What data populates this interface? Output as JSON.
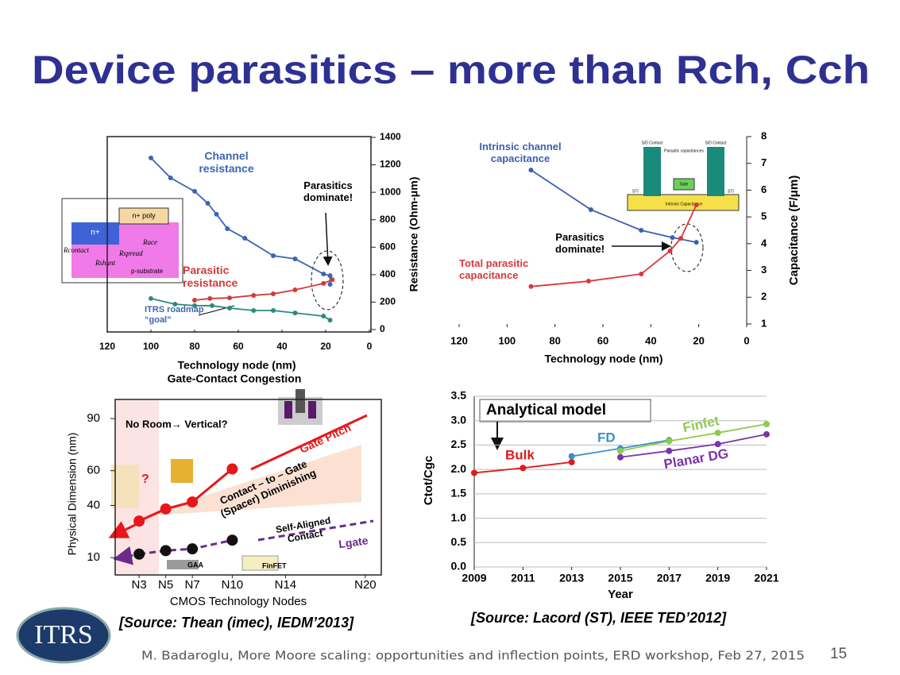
{
  "title": "Device parasitics – more than Rch, Cch",
  "logo": "ITRS",
  "sources": [
    "[Source: Thean (imec), IEDM’2013]",
    "[Source: Lacord (ST), IEEE TED’2012]"
  ],
  "footer": "M. Badaroglu, More Moore scaling: opportunities and inflection points, ERD workshop, Feb 27, 2015",
  "page_number": "15",
  "chart_data": [
    {
      "type": "line",
      "xlabel": "Technology node (nm)",
      "ylabel": "Resistance (Ohm-μm)",
      "xlim": [
        120,
        0
      ],
      "xticks": [
        120,
        100,
        80,
        60,
        40,
        20,
        0
      ],
      "ylim": [
        0,
        1400
      ],
      "yticks": [
        0,
        200,
        400,
        600,
        800,
        1000,
        1200,
        1400
      ],
      "series": [
        {
          "name": "Channel resistance",
          "color": "#3c64b4",
          "x": [
            100,
            91,
            80,
            74,
            70,
            65,
            57,
            44,
            34,
            21,
            18,
            18
          ],
          "values": [
            1250,
            1105,
            1007,
            920,
            840,
            735,
            665,
            538,
            515,
            405,
            393,
            330
          ]
        },
        {
          "name": "Parasitic resistance",
          "color": "#d23a3a",
          "x": [
            80,
            73,
            64,
            53,
            44,
            34,
            21,
            17
          ],
          "values": [
            214,
            226,
            231,
            249,
            260,
            289,
            336,
            364
          ]
        },
        {
          "name": "ITRS roadmap “goal”",
          "color": "#2a8a80",
          "x": [
            100,
            89,
            80,
            72,
            64,
            53,
            44,
            34,
            21,
            18
          ],
          "values": [
            226,
            185,
            174,
            174,
            156,
            139,
            139,
            121,
            98,
            69
          ]
        }
      ],
      "annotations": [
        "Parasitics dominate!"
      ],
      "inset_labels": [
        "n+ poly",
        "n+",
        "Rcontact",
        "Rspread",
        "Race",
        "Rshunt",
        "p-substrate"
      ]
    },
    {
      "type": "line",
      "xlabel": "Technology node (nm)",
      "ylabel": "Capacitance (F/μm)",
      "xlim": [
        120,
        0
      ],
      "xticks": [
        120,
        100,
        80,
        60,
        40,
        20,
        0
      ],
      "ylim": [
        1,
        8
      ],
      "yticks": [
        1,
        2,
        3,
        4,
        5,
        6,
        7,
        8
      ],
      "series": [
        {
          "name": "Intrinsic channel capacitance",
          "color": "#3d5fb0",
          "x": [
            90,
            65,
            44,
            31,
            21
          ],
          "values": [
            6.75,
            5.27,
            4.5,
            4.23,
            4.05
          ]
        },
        {
          "name": "Total parasitic capacitance",
          "color": "#d9383a",
          "x": [
            90,
            66,
            44,
            32,
            27.5,
            21
          ],
          "values": [
            2.4,
            2.6,
            2.87,
            3.73,
            4.2,
            5.45
          ]
        }
      ],
      "annotations": [
        "Parasitics dominate!"
      ],
      "inset_labels": [
        "S/D Contact",
        "S/D Contact",
        "Parasitic capacitances",
        "Gate",
        "STI",
        "STI",
        "Intrinsic Capacitance"
      ]
    },
    {
      "type": "line",
      "xlabel": "CMOS Technology Nodes",
      "ylabel": "Physical Dimension (nm)",
      "xlim": [
        1.2,
        21.2
      ],
      "xticks": [
        {
          "value": 3,
          "label": "N3"
        },
        {
          "value": 5,
          "label": "N5"
        },
        {
          "value": 7,
          "label": "N7"
        },
        {
          "value": 10,
          "label": "N10"
        },
        {
          "value": 14,
          "label": "N14"
        },
        {
          "value": 20,
          "label": "N20"
        }
      ],
      "ylim": [
        0,
        101
      ],
      "yticks": [
        10,
        40,
        60,
        90
      ],
      "series": [
        {
          "name": "Gate Pitch",
          "color": "#e8161b",
          "marker_color": "#e8161b",
          "x": [
            3,
            5,
            7,
            10
          ],
          "values": [
            31,
            38,
            42,
            61
          ]
        },
        {
          "name": "Lgate",
          "color": "#6b2c8a",
          "marker_color": "#111111",
          "dashed": true,
          "x": [
            3,
            5,
            7,
            10
          ],
          "values": [
            12,
            14,
            15,
            20
          ]
        }
      ],
      "annotations": [
        "Gate-Contact Congestion",
        "No Room→ Vertical?",
        "Contact – to – Gate (Spacer) Diminishing",
        "Self-Aligned Contact",
        "GAA",
        "FinFET",
        "?"
      ]
    },
    {
      "type": "line",
      "xlabel": "Year",
      "ylabel": "Ctot/Cgc",
      "xlim": [
        2009,
        2021
      ],
      "xticks": [
        2009,
        2011,
        2013,
        2015,
        2017,
        2019,
        2021
      ],
      "ylim": [
        0,
        3.5
      ],
      "yticks": [
        {
          "value": 0,
          "label": "0.0"
        },
        0.5,
        {
          "value": 1,
          "label": "1.0"
        },
        1.5,
        {
          "value": 2,
          "label": "2.0"
        },
        2.5,
        {
          "value": 3,
          "label": "3.0"
        },
        3.5
      ],
      "grid": true,
      "series": [
        {
          "name": "Bulk",
          "color": "#e01a1a",
          "x": [
            2009,
            2011,
            2013
          ],
          "values": [
            1.93,
            2.03,
            2.15
          ]
        },
        {
          "name": "FD",
          "color": "#3b8fd0",
          "x": [
            2013,
            2015,
            2017
          ],
          "values": [
            2.27,
            2.43,
            2.6
          ]
        },
        {
          "name": "Finfet",
          "color": "#8ccc4a",
          "x": [
            2015,
            2017,
            2019,
            2021
          ],
          "values": [
            2.38,
            2.58,
            2.75,
            2.93
          ]
        },
        {
          "name": "Planar DG",
          "color": "#7a35a8",
          "x": [
            2015,
            2017,
            2019,
            2021
          ],
          "values": [
            2.25,
            2.38,
            2.52,
            2.72
          ]
        }
      ],
      "annotations": [
        "Analytical model"
      ]
    }
  ]
}
